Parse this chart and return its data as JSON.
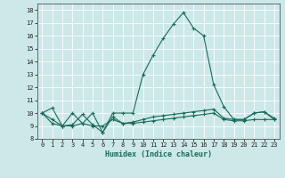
{
  "xlabel": "Humidex (Indice chaleur)",
  "xlim": [
    -0.5,
    23.5
  ],
  "ylim": [
    8,
    18.5
  ],
  "xticks": [
    0,
    1,
    2,
    3,
    4,
    5,
    6,
    7,
    8,
    9,
    10,
    11,
    12,
    13,
    14,
    15,
    16,
    17,
    18,
    19,
    20,
    21,
    22,
    23
  ],
  "yticks": [
    8,
    9,
    10,
    11,
    12,
    13,
    14,
    15,
    16,
    17,
    18
  ],
  "bg_color": "#cce8e8",
  "line_color": "#1a6b5a",
  "grid_color": "#ffffff",
  "line1_x": [
    0,
    1,
    2,
    3,
    4,
    5,
    6,
    7,
    8,
    9,
    10,
    11,
    12,
    13,
    14,
    15,
    16,
    17,
    18,
    19,
    20,
    21,
    22,
    23
  ],
  "line1_y": [
    10.0,
    10.4,
    9.0,
    10.0,
    9.2,
    10.0,
    8.5,
    10.0,
    10.0,
    10.0,
    13.0,
    14.5,
    15.8,
    16.9,
    17.8,
    16.6,
    16.0,
    12.2,
    10.5,
    9.5,
    9.5,
    10.0,
    10.1,
    9.5
  ],
  "line2_x": [
    0,
    1,
    2,
    3,
    4,
    5,
    6,
    7,
    8,
    9,
    10,
    11,
    12,
    13,
    14,
    15,
    16,
    17,
    18,
    19,
    20,
    21,
    22,
    23
  ],
  "line2_y": [
    10.0,
    9.2,
    9.0,
    9.1,
    9.9,
    9.1,
    8.5,
    9.7,
    9.2,
    9.2,
    9.3,
    9.4,
    9.5,
    9.6,
    9.7,
    9.8,
    9.9,
    10.0,
    9.5,
    9.4,
    9.4,
    9.5,
    9.5,
    9.5
  ],
  "line3_x": [
    0,
    1,
    2,
    3,
    4,
    5,
    6,
    7,
    8,
    9,
    10,
    11,
    12,
    13,
    14,
    15,
    16,
    17,
    18,
    19,
    20,
    21,
    22,
    23
  ],
  "line3_y": [
    10.0,
    9.5,
    9.0,
    9.0,
    9.2,
    9.0,
    9.0,
    9.5,
    9.2,
    9.3,
    9.5,
    9.7,
    9.8,
    9.9,
    10.0,
    10.1,
    10.2,
    10.3,
    9.6,
    9.5,
    9.5,
    10.0,
    10.1,
    9.6
  ]
}
